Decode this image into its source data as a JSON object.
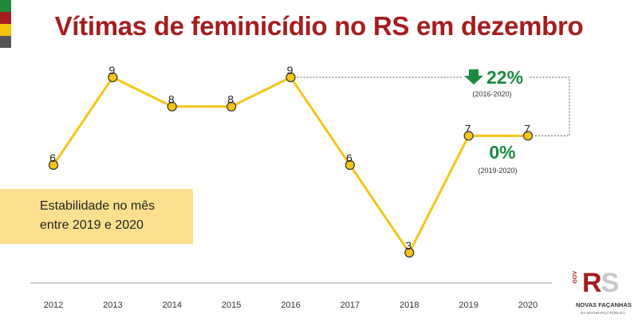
{
  "header": {
    "title": "Vítimas de feminicídio no RS em dezembro",
    "strip_colors": [
      "#1f8a3a",
      "#a51d1d",
      "#f1c40f",
      "#555555"
    ]
  },
  "note": {
    "line1": "Estabilidade no mês",
    "line2": "entre 2019 e 2020"
  },
  "logo": {
    "gov": "GOV",
    "rs_r": "R",
    "rs_s": "S",
    "name": "NOVAS FAÇANHAS",
    "sub": "NA SEGURANÇA PÚBLICA"
  },
  "chart_data": {
    "type": "line",
    "categories": [
      "2012",
      "2013",
      "2014",
      "2015",
      "2016",
      "2017",
      "2018",
      "2019",
      "2020"
    ],
    "values": [
      6,
      9,
      8,
      8,
      9,
      6,
      3,
      7,
      7
    ],
    "title": "Vítimas de feminicídio no RS em dezembro",
    "xlabel": "",
    "ylabel": "",
    "ylim": [
      3,
      9
    ],
    "grid": false,
    "line_color": "#f5c518",
    "marker_color": "#f5c518",
    "annotations": [
      {
        "value": "22%",
        "period": "(2016-2020)",
        "direction": "down",
        "from": "2016",
        "to": "2020",
        "color": "#1b8a3e"
      },
      {
        "value": "0%",
        "period": "(2019-2020)",
        "from": "2019",
        "to": "2020",
        "color": "#1b8a3e"
      }
    ]
  }
}
